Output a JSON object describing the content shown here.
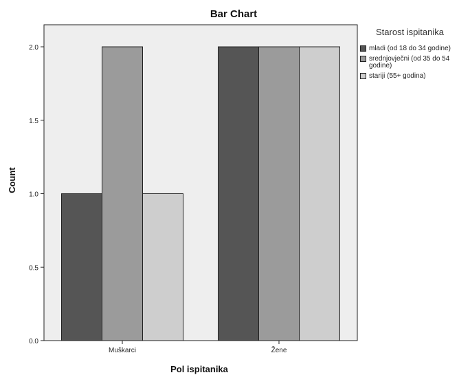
{
  "chart_data": {
    "type": "bar",
    "title": "Bar Chart",
    "xlabel": "Pol ispitanika",
    "ylabel": "Count",
    "categories": [
      "Muškarci",
      "Žene"
    ],
    "series": [
      {
        "name": "mladi (od 18 do 34 godine)",
        "values": [
          1,
          2
        ],
        "color": "#555555"
      },
      {
        "name": "srednjovječni (od 35 do 54 godine)",
        "values": [
          2,
          2
        ],
        "color": "#9b9b9b"
      },
      {
        "name": "stariji (55+ godina)",
        "values": [
          1,
          2
        ],
        "color": "#cecece"
      }
    ],
    "ylim": [
      0,
      2.15
    ],
    "yticks": [
      "0.0",
      "0.5",
      "1.0",
      "1.5",
      "2.0"
    ],
    "legend_title": "Starost ispitanika",
    "legend_position": "right",
    "grid": false,
    "plot_background": "#eeeeee"
  }
}
